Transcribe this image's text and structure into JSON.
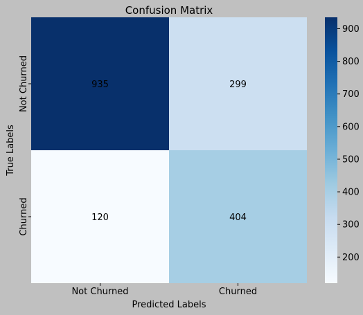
{
  "chart_data": {
    "type": "heatmap",
    "title": "Confusion Matrix",
    "xlabel": "Predicted Labels",
    "ylabel": "True Labels",
    "x_categories": [
      "Not Churned",
      "Churned"
    ],
    "y_categories": [
      "Not Churned",
      "Churned"
    ],
    "values": [
      [
        935,
        299
      ],
      [
        120,
        404
      ]
    ],
    "colormap": "Blues",
    "colorbar": {
      "range": [
        120,
        935
      ],
      "ticks": [
        200,
        300,
        400,
        500,
        600,
        700,
        800,
        900
      ]
    }
  },
  "colors": {
    "background": "#c0c0c0",
    "dark_text": "#000000",
    "light_text": "#ffffff"
  }
}
